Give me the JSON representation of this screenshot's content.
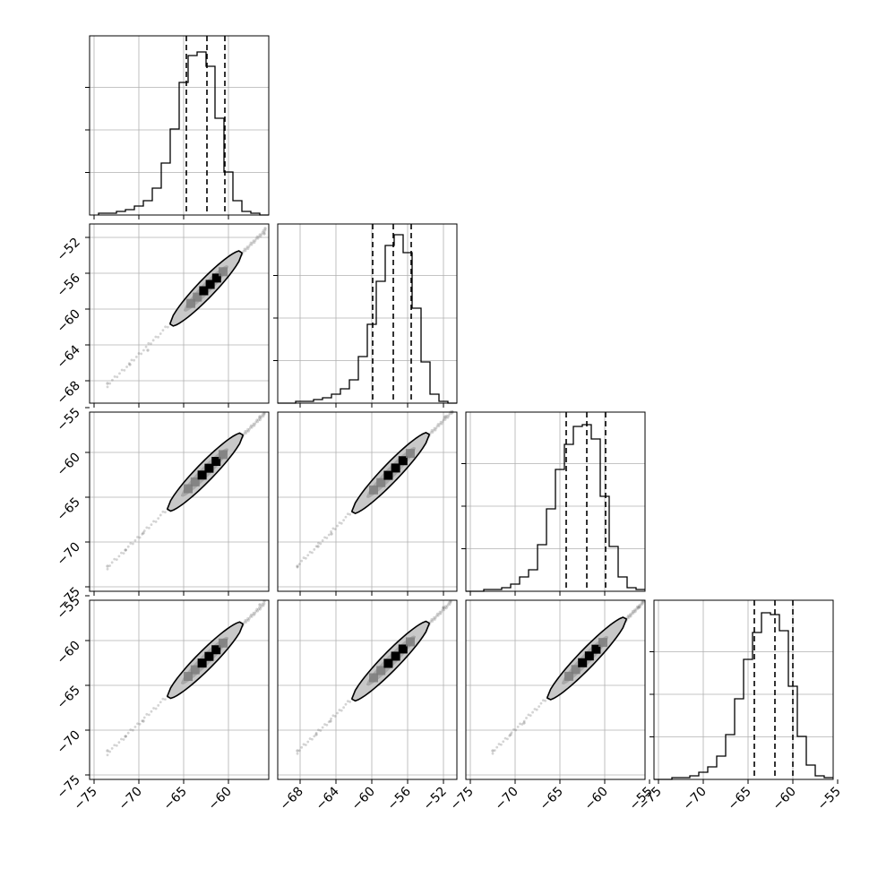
{
  "chart_data": {
    "type": "corner",
    "panel_count": 10,
    "histogram_quantile_lines": "dashed",
    "grid": true,
    "colors": {
      "ink": "#000000",
      "grid": "#b0b0b0",
      "contour_fill": "#c8c8c8",
      "scatter": "#555555"
    },
    "params": [
      {
        "range": [
          -75.5,
          -55.5
        ]
      },
      {
        "range": [
          -70.5,
          -50.5
        ]
      },
      {
        "range": [
          -75.5,
          -55.5
        ]
      },
      {
        "range": [
          -75.5,
          -55.5
        ]
      }
    ],
    "tick_values": [
      [
        -75,
        -70,
        -65,
        -60
      ],
      [
        -68,
        -64,
        -60,
        -56,
        -52
      ],
      [
        -75,
        -70,
        -65,
        -60,
        -55
      ],
      [
        -75,
        -70,
        -65,
        -60,
        -55
      ]
    ],
    "tick_labels": [
      [
        "−75",
        "−70",
        "−65",
        "−60"
      ],
      [
        "−68",
        "−64",
        "−60",
        "−56",
        "−52"
      ],
      [
        "−75",
        "−70",
        "−65",
        "−60",
        "−55"
      ],
      [
        "−75",
        "−70",
        "−65",
        "−60",
        "−55"
      ]
    ],
    "quantiles": [
      [
        -64.7,
        -62.4,
        -60.4
      ],
      [
        -59.9,
        -57.6,
        -55.6
      ],
      [
        -64.3,
        -62.0,
        -59.9
      ],
      [
        -64.3,
        -62.0,
        -60.0
      ]
    ],
    "histograms": [
      {
        "bin_edges": [
          -74.5,
          -73.5,
          -72.5,
          -71.5,
          -70.5,
          -69.5,
          -68.5,
          -67.5,
          -66.5,
          -65.5,
          -64.5,
          -63.5,
          -62.5,
          -61.5,
          -60.5,
          -59.5,
          -58.5,
          -57.5,
          -56.5,
          -55.5
        ],
        "counts": [
          0.01,
          0.01,
          0.02,
          0.03,
          0.05,
          0.08,
          0.15,
          0.29,
          0.48,
          0.74,
          0.89,
          0.91,
          0.83,
          0.54,
          0.24,
          0.08,
          0.02,
          0.01,
          0.0
        ]
      },
      {
        "bin_edges": [
          -70.5,
          -69.5,
          -68.5,
          -67.5,
          -66.5,
          -65.5,
          -64.5,
          -63.5,
          -62.5,
          -61.5,
          -60.5,
          -59.5,
          -58.5,
          -57.5,
          -56.5,
          -55.5,
          -54.5,
          -53.5,
          -52.5,
          -51.5,
          -50.5
        ],
        "counts": [
          0.0,
          0.0,
          0.01,
          0.01,
          0.02,
          0.03,
          0.05,
          0.08,
          0.13,
          0.26,
          0.44,
          0.68,
          0.88,
          0.94,
          0.84,
          0.53,
          0.23,
          0.05,
          0.01,
          0.0
        ]
      },
      {
        "bin_edges": [
          -75.5,
          -74.5,
          -73.5,
          -72.5,
          -71.5,
          -70.5,
          -69.5,
          -68.5,
          -67.5,
          -66.5,
          -65.5,
          -64.5,
          -63.5,
          -62.5,
          -61.5,
          -60.5,
          -59.5,
          -58.5,
          -57.5,
          -56.5,
          -55.5
        ],
        "counts": [
          0.0,
          0.0,
          0.01,
          0.01,
          0.02,
          0.04,
          0.08,
          0.12,
          0.26,
          0.46,
          0.68,
          0.82,
          0.92,
          0.93,
          0.85,
          0.53,
          0.25,
          0.08,
          0.02,
          0.01
        ]
      },
      {
        "bin_edges": [
          -75.5,
          -74.5,
          -73.5,
          -72.5,
          -71.5,
          -70.5,
          -69.5,
          -68.5,
          -67.5,
          -66.5,
          -65.5,
          -64.5,
          -63.5,
          -62.5,
          -61.5,
          -60.5,
          -59.5,
          -58.5,
          -57.5,
          -56.5,
          -55.5
        ],
        "counts": [
          0.0,
          0.0,
          0.01,
          0.01,
          0.02,
          0.04,
          0.07,
          0.13,
          0.25,
          0.45,
          0.67,
          0.82,
          0.93,
          0.92,
          0.83,
          0.52,
          0.24,
          0.08,
          0.02,
          0.01
        ]
      }
    ],
    "pairs": [
      {
        "x_param": 0,
        "y_param": 1,
        "center": [
          -62.4,
          -57.6
        ],
        "outer_contour_x": [
          -66.5,
          -58.5
        ],
        "inner_contour_x": [
          -65.0,
          -60.0
        ],
        "tail_points": [
          [
            -73.5,
            -68.3
          ],
          [
            -71.0,
            -66.2
          ],
          [
            -69.0,
            -64.6
          ],
          [
            -56.0,
            -51.6
          ],
          [
            -55.9,
            -51.0
          ]
        ]
      },
      {
        "x_param": 0,
        "y_param": 2,
        "center": [
          -62.4,
          -62.0
        ],
        "outer_contour_x": [
          -66.8,
          -58.4
        ],
        "inner_contour_x": [
          -65.3,
          -60.0
        ],
        "tail_points": [
          [
            -73.5,
            -72.7
          ],
          [
            -71.5,
            -70.9
          ],
          [
            -69.5,
            -69.0
          ],
          [
            -56.5,
            -56.0
          ],
          [
            -56.0,
            -55.6
          ]
        ]
      },
      {
        "x_param": 1,
        "y_param": 2,
        "center": [
          -57.6,
          -62.0
        ],
        "outer_contour_x": [
          -62.2,
          -53.6
        ],
        "inner_contour_x": [
          -60.6,
          -55.1
        ],
        "tail_points": [
          [
            -68.3,
            -72.7
          ],
          [
            -66.0,
            -70.5
          ],
          [
            -64.5,
            -69.1
          ],
          [
            -51.8,
            -56.0
          ],
          [
            -51.0,
            -55.5
          ]
        ]
      },
      {
        "x_param": 0,
        "y_param": 3,
        "center": [
          -62.4,
          -62.0
        ],
        "outer_contour_x": [
          -66.8,
          -58.4
        ],
        "inner_contour_x": [
          -65.3,
          -60.0
        ],
        "tail_points": [
          [
            -73.5,
            -72.3
          ],
          [
            -71.5,
            -70.7
          ],
          [
            -69.5,
            -69.0
          ],
          [
            -56.5,
            -56.0
          ],
          [
            -56.0,
            -55.6
          ]
        ]
      },
      {
        "x_param": 1,
        "y_param": 3,
        "center": [
          -57.6,
          -62.0
        ],
        "outer_contour_x": [
          -62.2,
          -53.6
        ],
        "inner_contour_x": [
          -60.6,
          -55.1
        ],
        "tail_points": [
          [
            -68.3,
            -72.3
          ],
          [
            -66.2,
            -70.5
          ],
          [
            -64.6,
            -69.0
          ],
          [
            -52.0,
            -56.3
          ],
          [
            -51.2,
            -55.6
          ]
        ]
      },
      {
        "x_param": 2,
        "y_param": 3,
        "center": [
          -62.0,
          -62.0
        ],
        "outer_contour_x": [
          -66.4,
          -57.6
        ],
        "inner_contour_x": [
          -64.8,
          -59.6
        ],
        "tail_points": [
          [
            -72.5,
            -72.3
          ],
          [
            -70.5,
            -70.5
          ],
          [
            -69.0,
            -69.2
          ],
          [
            -56.2,
            -56.3
          ],
          [
            -55.7,
            -55.6
          ]
        ]
      }
    ]
  }
}
